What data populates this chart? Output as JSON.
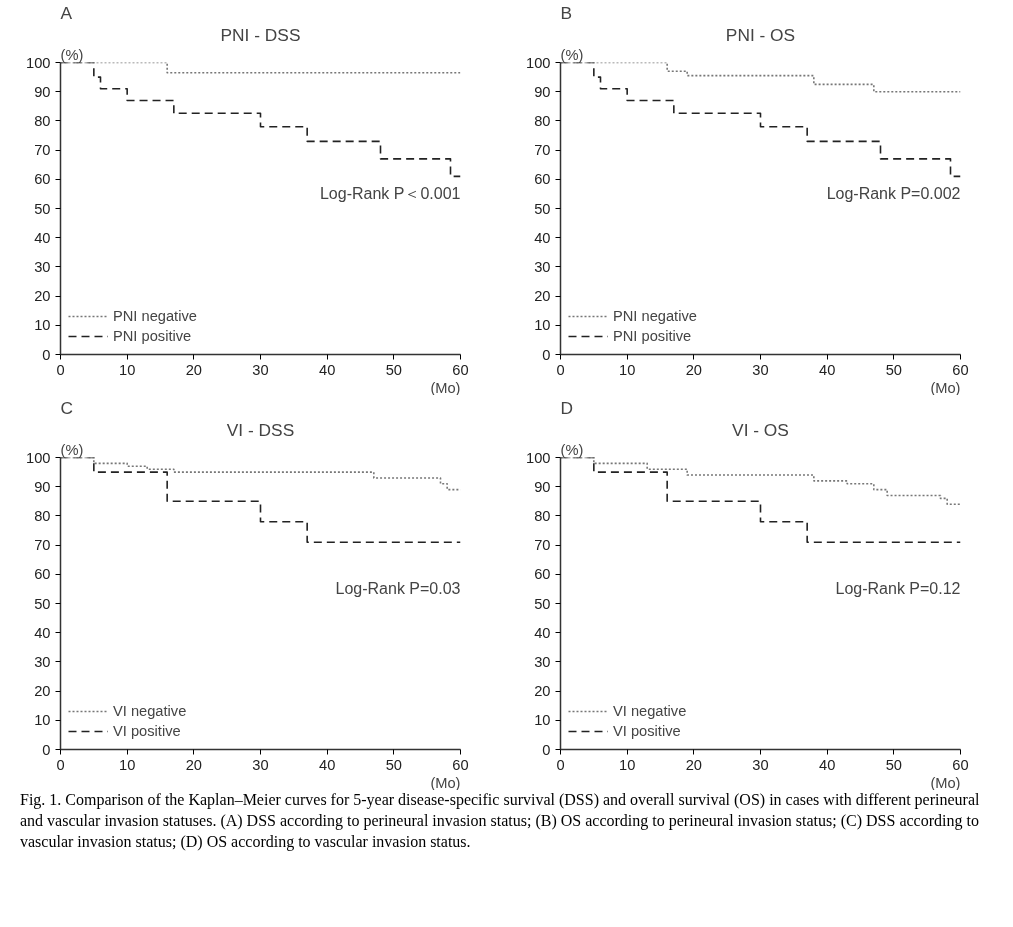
{
  "chart_data": [
    {
      "type": "step",
      "title": "PNI - DSS",
      "xlabel": "(Mo)",
      "ylabel": "(%)",
      "xlim": [
        0,
        60
      ],
      "ylim": [
        0,
        100
      ],
      "xticks": [
        0,
        10,
        20,
        30,
        40,
        50,
        60
      ],
      "yticks": [
        0,
        10,
        20,
        30,
        40,
        50,
        60,
        70,
        80,
        90,
        100
      ],
      "grid": false,
      "legend": "bottom left",
      "marker": "none",
      "annotations": [
        "A",
        "Log-Rank P＜0.001"
      ],
      "series": [
        {
          "name": "PNI negative",
          "color": "#777777",
          "line_style": "dotted",
          "x": [
            0,
            16,
            60
          ],
          "values": [
            100,
            96.5,
            96.5
          ]
        },
        {
          "name": "PNI positive",
          "color": "#222222",
          "line_style": "dashed",
          "x": [
            0,
            5,
            6,
            10,
            17,
            30,
            37,
            48,
            58.5,
            60
          ],
          "values": [
            100,
            95,
            91,
            87,
            82.6,
            78,
            73,
            67,
            61,
            61
          ]
        }
      ]
    },
    {
      "type": "step",
      "title": "PNI - OS",
      "xlabel": "(Mo)",
      "ylabel": "(%)",
      "xlim": [
        0,
        60
      ],
      "ylim": [
        0,
        100
      ],
      "xticks": [
        0,
        10,
        20,
        30,
        40,
        50,
        60
      ],
      "yticks": [
        0,
        10,
        20,
        30,
        40,
        50,
        60,
        70,
        80,
        90,
        100
      ],
      "grid": false,
      "legend": "bottom left",
      "marker": "none",
      "annotations": [
        "B",
        "Log-Rank P=0.002"
      ],
      "series": [
        {
          "name": "PNI negative",
          "color": "#777777",
          "line_style": "dotted",
          "x": [
            0,
            16,
            19,
            38,
            47,
            60
          ],
          "values": [
            100,
            97,
            95.5,
            92.5,
            90,
            90
          ]
        },
        {
          "name": "PNI positive",
          "color": "#222222",
          "line_style": "dashed",
          "x": [
            0,
            5,
            6,
            10,
            17,
            30,
            37,
            48,
            58.5,
            60
          ],
          "values": [
            100,
            95,
            91,
            87,
            82.6,
            78,
            73,
            67,
            61,
            61
          ]
        }
      ]
    },
    {
      "type": "step",
      "title": "VI - DSS",
      "xlabel": "(Mo)",
      "ylabel": "(%)",
      "xlim": [
        0,
        60
      ],
      "ylim": [
        0,
        100
      ],
      "xticks": [
        0,
        10,
        20,
        30,
        40,
        50,
        60
      ],
      "yticks": [
        0,
        10,
        20,
        30,
        40,
        50,
        60,
        70,
        80,
        90,
        100
      ],
      "grid": false,
      "legend": "bottom left",
      "marker": "none",
      "annotations": [
        "C",
        "Log-Rank P=0.03"
      ],
      "series": [
        {
          "name": "VI negative",
          "color": "#777777",
          "line_style": "dotted",
          "x": [
            0,
            5,
            10,
            13,
            17,
            47,
            57,
            58,
            60
          ],
          "values": [
            100,
            98,
            97,
            96,
            95,
            93,
            91,
            89,
            89
          ]
        },
        {
          "name": "VI positive",
          "color": "#222222",
          "line_style": "dashed",
          "x": [
            0,
            5,
            16,
            30,
            37,
            60
          ],
          "values": [
            100,
            95,
            85,
            78,
            71,
            71
          ]
        }
      ]
    },
    {
      "type": "step",
      "title": "VI - OS",
      "xlabel": "(Mo)",
      "ylabel": "(%)",
      "xlim": [
        0,
        60
      ],
      "ylim": [
        0,
        100
      ],
      "xticks": [
        0,
        10,
        20,
        30,
        40,
        50,
        60
      ],
      "yticks": [
        0,
        10,
        20,
        30,
        40,
        50,
        60,
        70,
        80,
        90,
        100
      ],
      "grid": false,
      "legend": "bottom left",
      "marker": "none",
      "annotations": [
        "D",
        "Log-Rank P=0.12"
      ],
      "series": [
        {
          "name": "VI negative",
          "color": "#777777",
          "line_style": "dotted",
          "x": [
            0,
            5,
            13,
            19,
            38,
            43,
            47,
            49,
            57,
            58,
            60
          ],
          "values": [
            100,
            98,
            96,
            94,
            92,
            91,
            89,
            87,
            86,
            84,
            84
          ]
        },
        {
          "name": "VI positive",
          "color": "#222222",
          "line_style": "dashed",
          "x": [
            0,
            5,
            16,
            30,
            37,
            60
          ],
          "values": [
            100,
            95,
            85,
            78,
            71,
            71
          ]
        }
      ]
    },
    {
      "type": "other",
      "annotations": [
        "Fig. 1. Comparison of the Kaplan–Meier curves for 5-year disease-specific survival (DSS) and overall survival (OS) in cases with different perineural and vascular invasion statuses. (A) DSS according to perineural invasion status; (B) OS according to perineural invasion status; (C) DSS according to vascular invasion status; (D) OS according to vascular invasion status."
      ]
    }
  ]
}
